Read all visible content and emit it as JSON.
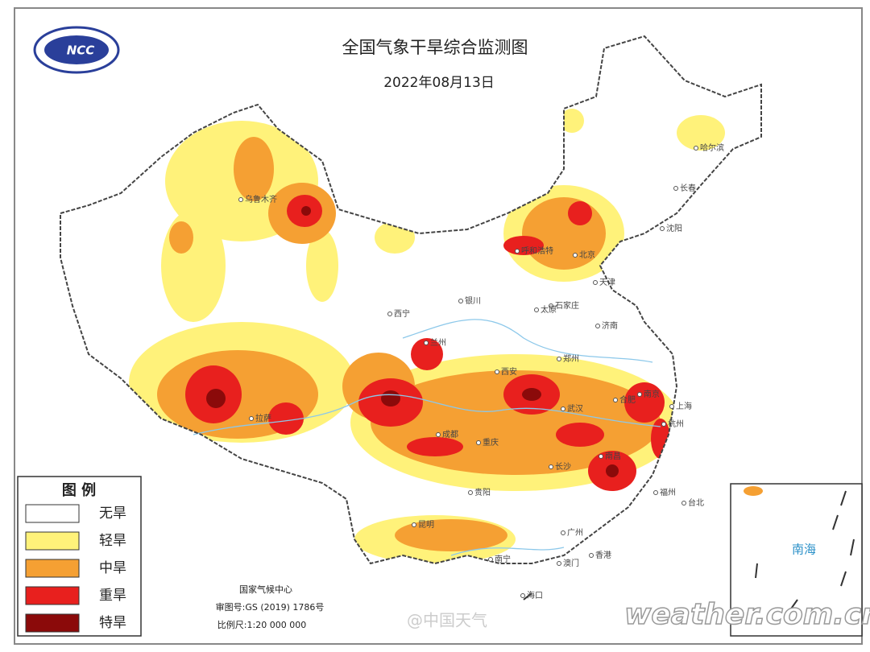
{
  "header": {
    "logo": "NCC",
    "title": "全国气象干旱综合监测图",
    "date": "2022年08月13日"
  },
  "legend": {
    "title": "图  例",
    "items": [
      {
        "label": "无旱",
        "color": "#ffffff"
      },
      {
        "label": "轻旱",
        "color": "#fff27a"
      },
      {
        "label": "中旱",
        "color": "#f5a033"
      },
      {
        "label": "重旱",
        "color": "#e8201e"
      },
      {
        "label": "特旱",
        "color": "#8b0a0a"
      }
    ]
  },
  "cities": [
    "乌鲁木齐",
    "哈尔滨",
    "长春",
    "沈阳",
    "呼和浩特",
    "北京",
    "天津",
    "石家庄",
    "太原",
    "济南",
    "银川",
    "西宁",
    "兰州",
    "西安",
    "郑州",
    "拉萨",
    "成都",
    "重庆",
    "武汉",
    "合肥",
    "南京",
    "上海",
    "杭州",
    "长沙",
    "南昌",
    "福州",
    "台北",
    "贵阳",
    "昆明",
    "南宁",
    "广州",
    "澳门",
    "香港",
    "海口"
  ],
  "footer": {
    "agency": "国家气候中心",
    "approval": "审图号:GS (2019) 1786号",
    "scale": "比例尺:1:20 000 000"
  },
  "inset": {
    "label": "南海"
  },
  "watermark": {
    "weibo": "@中国天气",
    "site": "weather.com.cn"
  }
}
